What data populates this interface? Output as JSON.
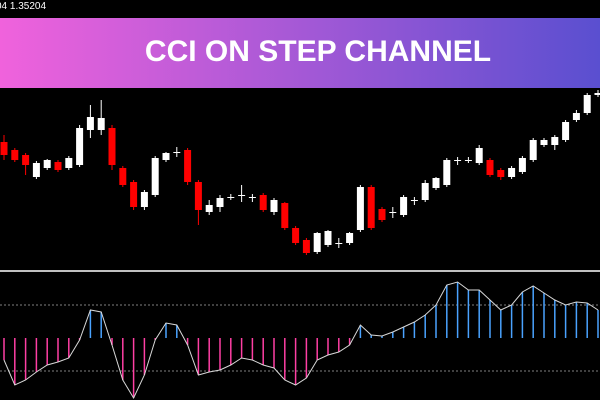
{
  "header_text": "04 1.35204",
  "chart_data": {
    "type": "candlestick",
    "title": "CCI ON STEP CHANNEL",
    "candles": [
      [
        128,
        135,
        110,
        115
      ],
      [
        120,
        122,
        108,
        110
      ],
      [
        115,
        117,
        95,
        105
      ],
      [
        93,
        109,
        91,
        107
      ],
      [
        102,
        111,
        100,
        110
      ],
      [
        108,
        110,
        98,
        100
      ],
      [
        102,
        114,
        100,
        112
      ],
      [
        105,
        145,
        103,
        142
      ],
      [
        140,
        165,
        132,
        153
      ],
      [
        140,
        170,
        135,
        152
      ],
      [
        142,
        145,
        100,
        105
      ],
      [
        102,
        104,
        83,
        85
      ],
      [
        88,
        90,
        60,
        63
      ],
      [
        63,
        80,
        60,
        78
      ],
      [
        75,
        114,
        73,
        112
      ],
      [
        110,
        118,
        108,
        117
      ],
      [
        118,
        123,
        113,
        118
      ],
      [
        120,
        122,
        85,
        88
      ],
      [
        88,
        90,
        45,
        60
      ],
      [
        58,
        70,
        55,
        65
      ],
      [
        63,
        75,
        58,
        72
      ],
      [
        73,
        76,
        70,
        73
      ],
      [
        75,
        85,
        68,
        75
      ],
      [
        73,
        76,
        68,
        73
      ],
      [
        75,
        77,
        58,
        60
      ],
      [
        58,
        72,
        55,
        70
      ],
      [
        67,
        68,
        40,
        42
      ],
      [
        42,
        44,
        25,
        27
      ],
      [
        30,
        32,
        15,
        17
      ],
      [
        18,
        38,
        16,
        37
      ],
      [
        25,
        40,
        23,
        39
      ],
      [
        27,
        32,
        22,
        27
      ],
      [
        27,
        38,
        25,
        37
      ],
      [
        40,
        85,
        38,
        83
      ],
      [
        83,
        85,
        40,
        42
      ],
      [
        61,
        63,
        48,
        50
      ],
      [
        58,
        63,
        52,
        58
      ],
      [
        55,
        75,
        53,
        73
      ],
      [
        70,
        73,
        65,
        70
      ],
      [
        70,
        90,
        68,
        87
      ],
      [
        82,
        93,
        80,
        92
      ],
      [
        85,
        112,
        83,
        110
      ],
      [
        110,
        113,
        105,
        110
      ],
      [
        110,
        113,
        107,
        110
      ],
      [
        107,
        125,
        105,
        122
      ],
      [
        110,
        112,
        93,
        95
      ],
      [
        100,
        102,
        90,
        93
      ],
      [
        93,
        104,
        91,
        102
      ],
      [
        98,
        114,
        96,
        112
      ],
      [
        110,
        132,
        108,
        130
      ],
      [
        125,
        132,
        123,
        130
      ],
      [
        125,
        135,
        120,
        133
      ],
      [
        130,
        150,
        128,
        148
      ],
      [
        150,
        160,
        148,
        157
      ],
      [
        157,
        177,
        155,
        175
      ],
      [
        175,
        180,
        173,
        177
      ]
    ],
    "ylim": [
      0,
      180
    ],
    "colors": {
      "up": "#ffffff",
      "down": "#ff0000"
    },
    "indicator": {
      "type": "histogram",
      "values": [
        -22,
        -47,
        -42,
        -34,
        -27,
        -24,
        -20,
        -2,
        28,
        26,
        -7,
        -42,
        -60,
        -37,
        -2,
        15,
        13,
        -7,
        -37,
        -34,
        -32,
        -27,
        -20,
        -22,
        -27,
        -30,
        -42,
        -47,
        -40,
        -22,
        -17,
        -14,
        -7,
        13,
        3,
        2,
        6,
        11,
        16,
        23,
        33,
        53,
        56,
        48,
        48,
        38,
        28,
        33,
        46,
        52,
        45,
        38,
        33,
        36,
        35,
        28
      ],
      "ylim": [
        -62,
        66
      ],
      "levels": [
        33,
        -33
      ],
      "colors": {
        "positive": "#4aa3ff",
        "negative": "#ff3fa4",
        "line": "#d8d8d8"
      }
    }
  }
}
